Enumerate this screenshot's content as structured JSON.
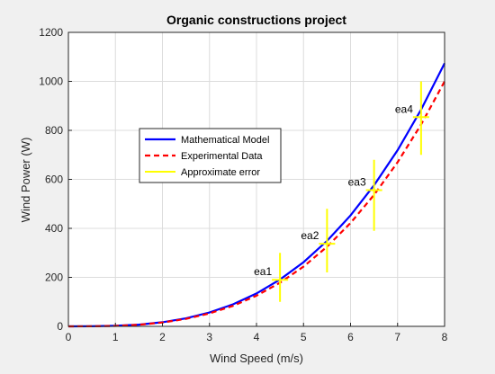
{
  "chart_data": {
    "type": "line",
    "title": "Organic constructions project",
    "xlabel": "Wind Speed (m/s)",
    "ylabel": "Wind Power (W)",
    "xlim": [
      0,
      8
    ],
    "ylim": [
      0,
      1200
    ],
    "x_ticks": [
      0,
      1,
      2,
      3,
      4,
      5,
      6,
      7,
      8
    ],
    "y_ticks": [
      0,
      200,
      400,
      600,
      800,
      1000,
      1200
    ],
    "grid": true,
    "legend_position": "center-left",
    "series": [
      {
        "name": "Mathematical Model",
        "color": "#0000ff",
        "style": "solid",
        "x": [
          0,
          0.5,
          1,
          1.5,
          2,
          2.5,
          3,
          3.5,
          4,
          4.5,
          5,
          5.5,
          6,
          6.5,
          7,
          7.5,
          8
        ],
        "y": [
          0,
          0.3,
          2.1,
          7.1,
          16.8,
          32.8,
          56.6,
          89.9,
          134.2,
          191.1,
          262.1,
          348.9,
          452.9,
          575.9,
          719.3,
          884.7,
          1073.7
        ]
      },
      {
        "name": "Experimental Data",
        "color": "#ff0000",
        "style": "dashed",
        "x": [
          0,
          0.5,
          1,
          1.5,
          2,
          2.5,
          3,
          3.5,
          4,
          4.5,
          5,
          5.5,
          6,
          6.5,
          7,
          7.5,
          8
        ],
        "y": [
          0,
          0.3,
          2.0,
          6.6,
          15.6,
          30.5,
          52.7,
          83.7,
          125.0,
          178.0,
          244.1,
          325.0,
          421.9,
          536.4,
          670.0,
          824.0,
          1000.0
        ]
      }
    ],
    "error_bars": {
      "name": "Approximate error",
      "color": "#ffff00",
      "points": [
        {
          "label": "ea1",
          "x": 4.5,
          "y": 190,
          "low": 100,
          "high": 300
        },
        {
          "label": "ea2",
          "x": 5.5,
          "y": 337,
          "low": 220,
          "high": 480
        },
        {
          "label": "ea3",
          "x": 6.5,
          "y": 556,
          "low": 390,
          "high": 680
        },
        {
          "label": "ea4",
          "x": 7.5,
          "y": 854,
          "low": 700,
          "high": 1000
        }
      ]
    }
  }
}
